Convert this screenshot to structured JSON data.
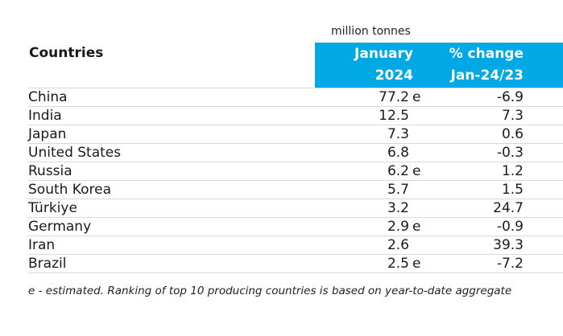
{
  "table": {
    "unit_label": "million tonnes",
    "countries_header": "Countries",
    "col1_header_line1": "January",
    "col1_header_line2": "2024",
    "col2_header_line1": "% change",
    "col2_header_line2": "Jan-24/23",
    "rows": [
      {
        "country": "China",
        "production": "77.2",
        "flag": "e",
        "change": "-6.9"
      },
      {
        "country": "India",
        "production": "12.5",
        "flag": "",
        "change": "7.3"
      },
      {
        "country": "Japan",
        "production": "7.3",
        "flag": "",
        "change": "0.6"
      },
      {
        "country": "United States",
        "production": "6.8",
        "flag": "",
        "change": "-0.3"
      },
      {
        "country": "Russia",
        "production": "6.2",
        "flag": "e",
        "change": "1.2"
      },
      {
        "country": "South Korea",
        "production": "5.7",
        "flag": "",
        "change": "1.5"
      },
      {
        "country": "Türkiye",
        "production": "3.2",
        "flag": "",
        "change": "24.7"
      },
      {
        "country": "Germany",
        "production": "2.9",
        "flag": "e",
        "change": "-0.9"
      },
      {
        "country": "Iran",
        "production": "2.6",
        "flag": "",
        "change": "39.3"
      },
      {
        "country": "Brazil",
        "production": "2.5",
        "flag": "e",
        "change": "-7.2"
      }
    ],
    "footnote": "e - estimated. Ranking of top 10 producing countries is based on year-to-date aggregate"
  },
  "colors": {
    "header_band": "#00a9e6",
    "row_divider": "#d9d9d9"
  }
}
